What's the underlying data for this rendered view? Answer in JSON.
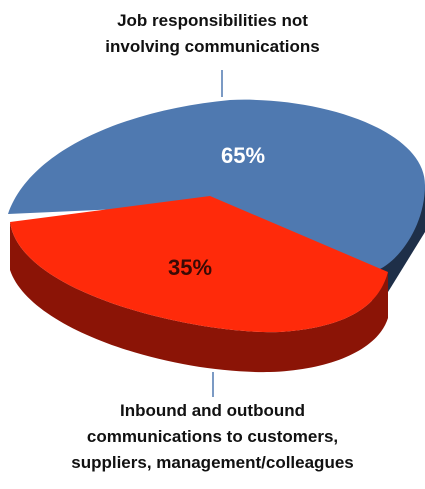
{
  "chart_data": {
    "type": "pie",
    "slices": [
      {
        "value": 65,
        "label": "65%",
        "name_lines": [
          "Job responsibilities not",
          "involving communications"
        ],
        "color": "#4F79B0"
      },
      {
        "value": 35,
        "label": "35%",
        "name_lines": [
          "Inbound and outbound",
          "communications to customers,",
          "suppliers, management/colleagues"
        ],
        "color": "#FF2A0A"
      }
    ]
  },
  "colors": {
    "blue_top": "#4F79B0",
    "blue_side": "#1E2F48",
    "red_top": "#FF2A0A",
    "red_side": "#8B1406",
    "label_pct_blue": "#FFFFFF",
    "label_pct_red": "#3A0A05"
  }
}
